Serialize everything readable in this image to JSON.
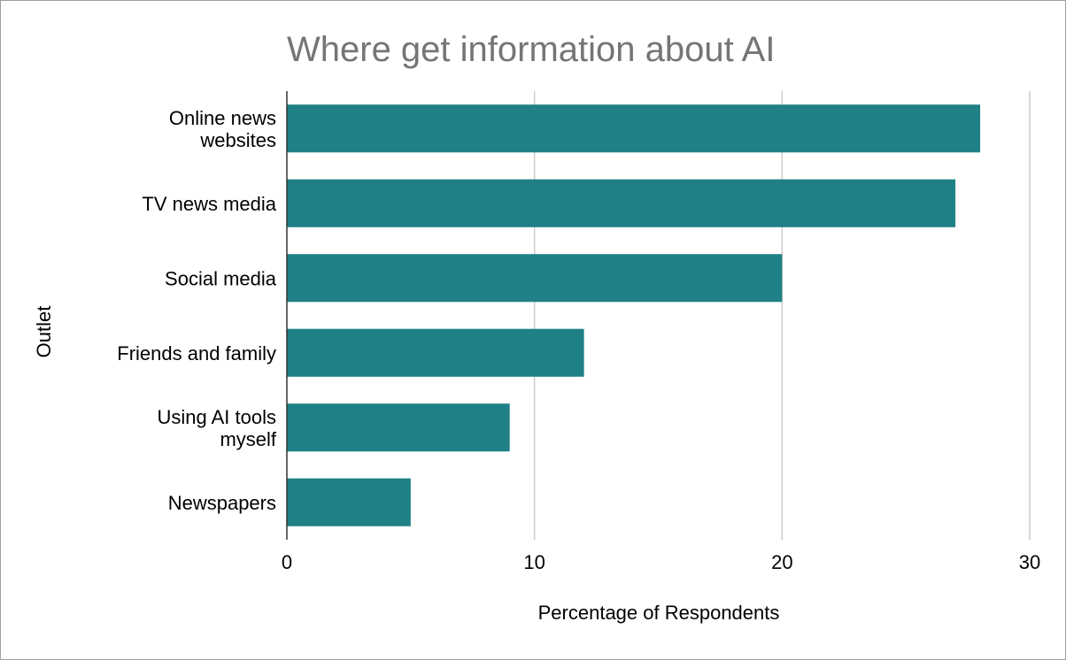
{
  "chart_data": {
    "type": "bar",
    "orientation": "horizontal",
    "title": "Where get information about AI",
    "xlabel": "Percentage of Respondents",
    "ylabel": "Outlet",
    "categories": [
      "Online news websites",
      "TV news media",
      "Social media",
      "Friends and family",
      "Using AI tools myself",
      "Newspapers"
    ],
    "category_lines": [
      [
        "Online news",
        "websites"
      ],
      [
        "TV news media"
      ],
      [
        "Social media"
      ],
      [
        "Friends and family"
      ],
      [
        "Using AI tools",
        "myself"
      ],
      [
        "Newspapers"
      ]
    ],
    "values": [
      28,
      27,
      20,
      12,
      9,
      5
    ],
    "xlim": [
      0,
      30
    ],
    "xticks": [
      0,
      10,
      20,
      30
    ],
    "grid": true,
    "legend": "none",
    "bar_color": "#1f8085"
  }
}
